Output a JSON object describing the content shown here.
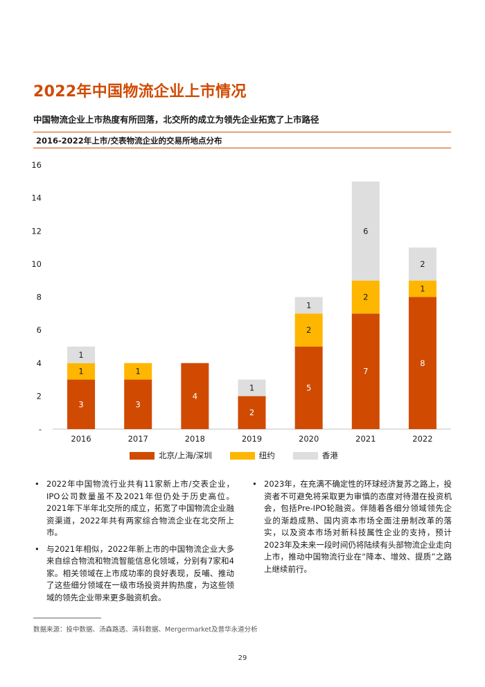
{
  "page": {
    "title": "2022年中国物流企业上市情况",
    "subtitle": "中国物流企业上市热度有所回落，北交所的成立为领先企业拓宽了上市路径",
    "chart_title": "2016-2022年上市/交表物流企业的交易所地点分布",
    "left_bullets": [
      "2022年中国物流行业共有11家新上市/交表企业，IPO公司数量虽不及2021年但仍处于历史高位。2021年下半年北交所的成立，拓宽了中国物流企业融资渠道，2022年共有两家综合物流企业在北交所上市。",
      "与2021年相似，2022年新上市的中国物流企业大多来自综合物流和物流智能信息化领域，分别有7家和4家。相关领域在上市成功率的良好表现，反哺、推动了这些细分领域在一级市场投资并购热度，为这些领域的领先企业带来更多融资机会。"
    ],
    "right_bullets": [
      "2023年，在充满不确定性的环球经济复苏之路上，投资者不可避免将采取更为审慎的态度对待潜在投资机会，包括Pre-IPO轮融资。伴随着各细分领域领先企业的渐趋成熟、国内资本市场全面注册制改革的落实，以及资本市场对新科技属性企业的支持，预计2023年及未来一段时间仍将陆续有头部物流企业走向上市，推动中国物流行业在“降本、增效、提质”之路上继续前行。"
    ],
    "source": "数据来源：投中数据、汤森路透、清科数据、Mergermarket及普华永道分析",
    "page_number": "29"
  },
  "colors": {
    "accent": "#d04a02",
    "beijing": "#d04a02",
    "newyork": "#ffb600",
    "hongkong": "#dedede"
  },
  "chart_data": {
    "type": "bar",
    "stacked": true,
    "title": "2016-2022年上市/交表物流企业的交易所地点分布",
    "categories": [
      "2016",
      "2017",
      "2018",
      "2019",
      "2020",
      "2021",
      "2022"
    ],
    "series": [
      {
        "name": "北京/上海/深圳",
        "values": [
          3,
          3,
          4,
          2,
          5,
          7,
          8
        ]
      },
      {
        "name": "纽约",
        "values": [
          1,
          1,
          0,
          0,
          2,
          2,
          1
        ]
      },
      {
        "name": "香港",
        "values": [
          1,
          0,
          0,
          1,
          1,
          6,
          2
        ]
      }
    ],
    "y_ticks": [
      "-",
      "2",
      "4",
      "6",
      "8",
      "10",
      "12",
      "14",
      "16"
    ],
    "ylim": [
      0,
      16
    ],
    "xlabel": "",
    "ylabel": "",
    "legend_position": "bottom",
    "grid": false
  }
}
